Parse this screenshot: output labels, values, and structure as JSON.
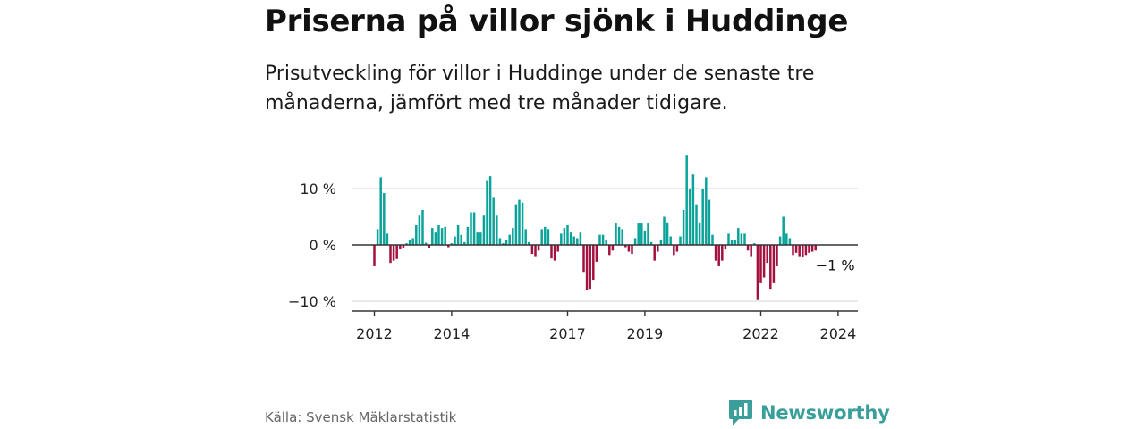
{
  "header": {
    "title": "Priserna på villor sjönk i Huddinge",
    "subtitle": "Prisutveckling för villor i Huddinge under de senaste tre månaderna, jämfört med tre månader tidigare."
  },
  "footer": {
    "source": "Källa: Svensk Mäklarstatistik",
    "brand": "Newsworthy"
  },
  "colors": {
    "positive": "#0aa39a",
    "negative": "#a3113f",
    "grid": "#dddddd",
    "axis": "#333333",
    "brand": "#3a9e9a"
  },
  "chart_data": {
    "type": "bar",
    "title": "Priserna på villor sjönk i Huddinge",
    "xlabel": "",
    "ylabel": "",
    "x_start": "2012-01",
    "x_interval": "month",
    "ylim": [
      -12,
      17
    ],
    "yticks": [
      {
        "value": 10,
        "label": "10 %"
      },
      {
        "value": 0,
        "label": "0 %"
      },
      {
        "value": -10,
        "label": "−10 %"
      }
    ],
    "xticks": [
      {
        "index": 0,
        "label": "2012"
      },
      {
        "index": 24,
        "label": "2014"
      },
      {
        "index": 60,
        "label": "2017"
      },
      {
        "index": 84,
        "label": "2019"
      },
      {
        "index": 120,
        "label": "2022"
      },
      {
        "index": 144,
        "label": "2024"
      }
    ],
    "annotation": "−1 %",
    "values": [
      -3.8,
      2.8,
      12.0,
      9.2,
      2.0,
      -3.2,
      -2.8,
      -2.5,
      -0.8,
      -0.5,
      0.3,
      0.8,
      1.2,
      3.5,
      5.2,
      6.2,
      0.4,
      -0.5,
      3.0,
      2.2,
      3.5,
      3.0,
      3.2,
      -0.4,
      0.3,
      1.5,
      3.5,
      1.8,
      0.5,
      3.2,
      5.8,
      5.8,
      2.2,
      2.2,
      5.2,
      11.5,
      12.2,
      8.5,
      5.2,
      1.2,
      0.3,
      0.8,
      1.8,
      3.0,
      7.2,
      8.0,
      7.5,
      2.8,
      0.5,
      -1.6,
      -2.0,
      -1.0,
      2.8,
      3.2,
      2.8,
      -2.4,
      -2.8,
      -1.2,
      2.0,
      3.0,
      3.5,
      2.2,
      1.5,
      1.2,
      2.2,
      -4.8,
      -8.0,
      -7.8,
      -6.2,
      -3.0,
      1.8,
      1.8,
      0.8,
      -1.8,
      -1.0,
      3.8,
      3.2,
      2.8,
      -0.4,
      -1.2,
      -1.6,
      1.2,
      3.8,
      3.8,
      2.5,
      3.8,
      0.5,
      -2.8,
      -1.2,
      0.8,
      5.0,
      4.0,
      1.5,
      -1.8,
      -1.2,
      1.5,
      6.2,
      16.0,
      10.0,
      12.5,
      7.2,
      4.0,
      10.0,
      12.0,
      8.0,
      1.8,
      -2.8,
      -3.8,
      -2.8,
      -0.8,
      2.0,
      0.8,
      0.8,
      3.0,
      2.0,
      2.0,
      -1.0,
      -2.0,
      0.3,
      -9.8,
      -6.8,
      -5.8,
      -3.2,
      -7.8,
      -6.8,
      -3.8,
      1.5,
      5.0,
      2.0,
      1.2,
      -1.8,
      -1.4,
      -2.0,
      -2.2,
      -1.8,
      -1.4,
      -1.2,
      -1.0
    ]
  }
}
